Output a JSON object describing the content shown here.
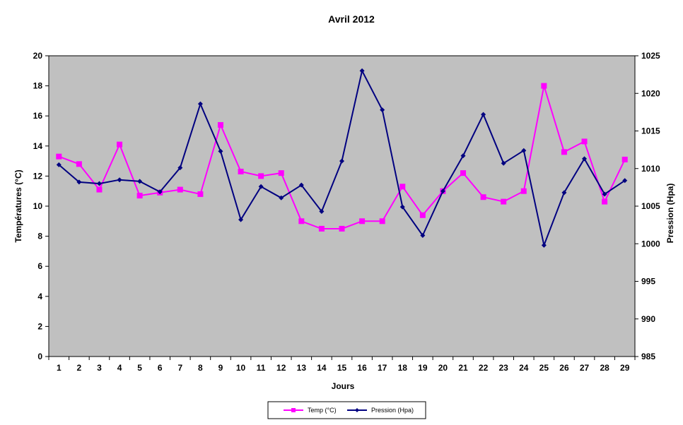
{
  "chart_data": {
    "type": "line",
    "title": "Avril 2012",
    "xlabel": "Jours",
    "ylabel": "Températures (°C)",
    "y2label": "Pression (Hpa)",
    "categories": [
      "1",
      "2",
      "3",
      "4",
      "5",
      "6",
      "7",
      "8",
      "9",
      "10",
      "11",
      "12",
      "13",
      "14",
      "15",
      "16",
      "17",
      "18",
      "19",
      "20",
      "21",
      "22",
      "23",
      "24",
      "25",
      "26",
      "27",
      "28",
      "29"
    ],
    "ylim": [
      0,
      20
    ],
    "yticks": [
      "0",
      "2",
      "4",
      "6",
      "8",
      "10",
      "12",
      "14",
      "16",
      "18",
      "20"
    ],
    "y2lim": [
      985,
      1025
    ],
    "y2ticks": [
      "985",
      "990",
      "995",
      "1000",
      "1005",
      "1010",
      "1015",
      "1020",
      "1025"
    ],
    "grid": false,
    "plot_background": "#c0c0c0",
    "legend_position": "bottom",
    "series": [
      {
        "name": "Temp (°C)",
        "axis": "left",
        "color": "#ff00ff",
        "marker": "square",
        "values": [
          13.3,
          12.8,
          11.1,
          14.1,
          10.7,
          10.9,
          11.1,
          10.8,
          15.4,
          12.3,
          12.0,
          12.2,
          9.0,
          8.5,
          8.5,
          9.0,
          9.0,
          11.3,
          9.4,
          11.0,
          12.2,
          10.6,
          10.3,
          11.0,
          18.0,
          13.6,
          14.3,
          10.3,
          13.1
        ]
      },
      {
        "name": "Pression (Hpa)",
        "axis": "right",
        "color": "#000080",
        "marker": "diamond",
        "values": [
          1010.5,
          1008.2,
          1008.0,
          1008.5,
          1008.3,
          1006.9,
          1010.1,
          1018.6,
          1012.3,
          1003.2,
          1007.6,
          1006.1,
          1007.8,
          1004.3,
          1011.0,
          1023.0,
          1017.8,
          1004.9,
          1001.1,
          1007.0,
          1011.7,
          1017.2,
          1010.7,
          1012.4,
          999.8,
          1006.8,
          1011.3,
          1006.6,
          1008.4
        ]
      }
    ]
  }
}
